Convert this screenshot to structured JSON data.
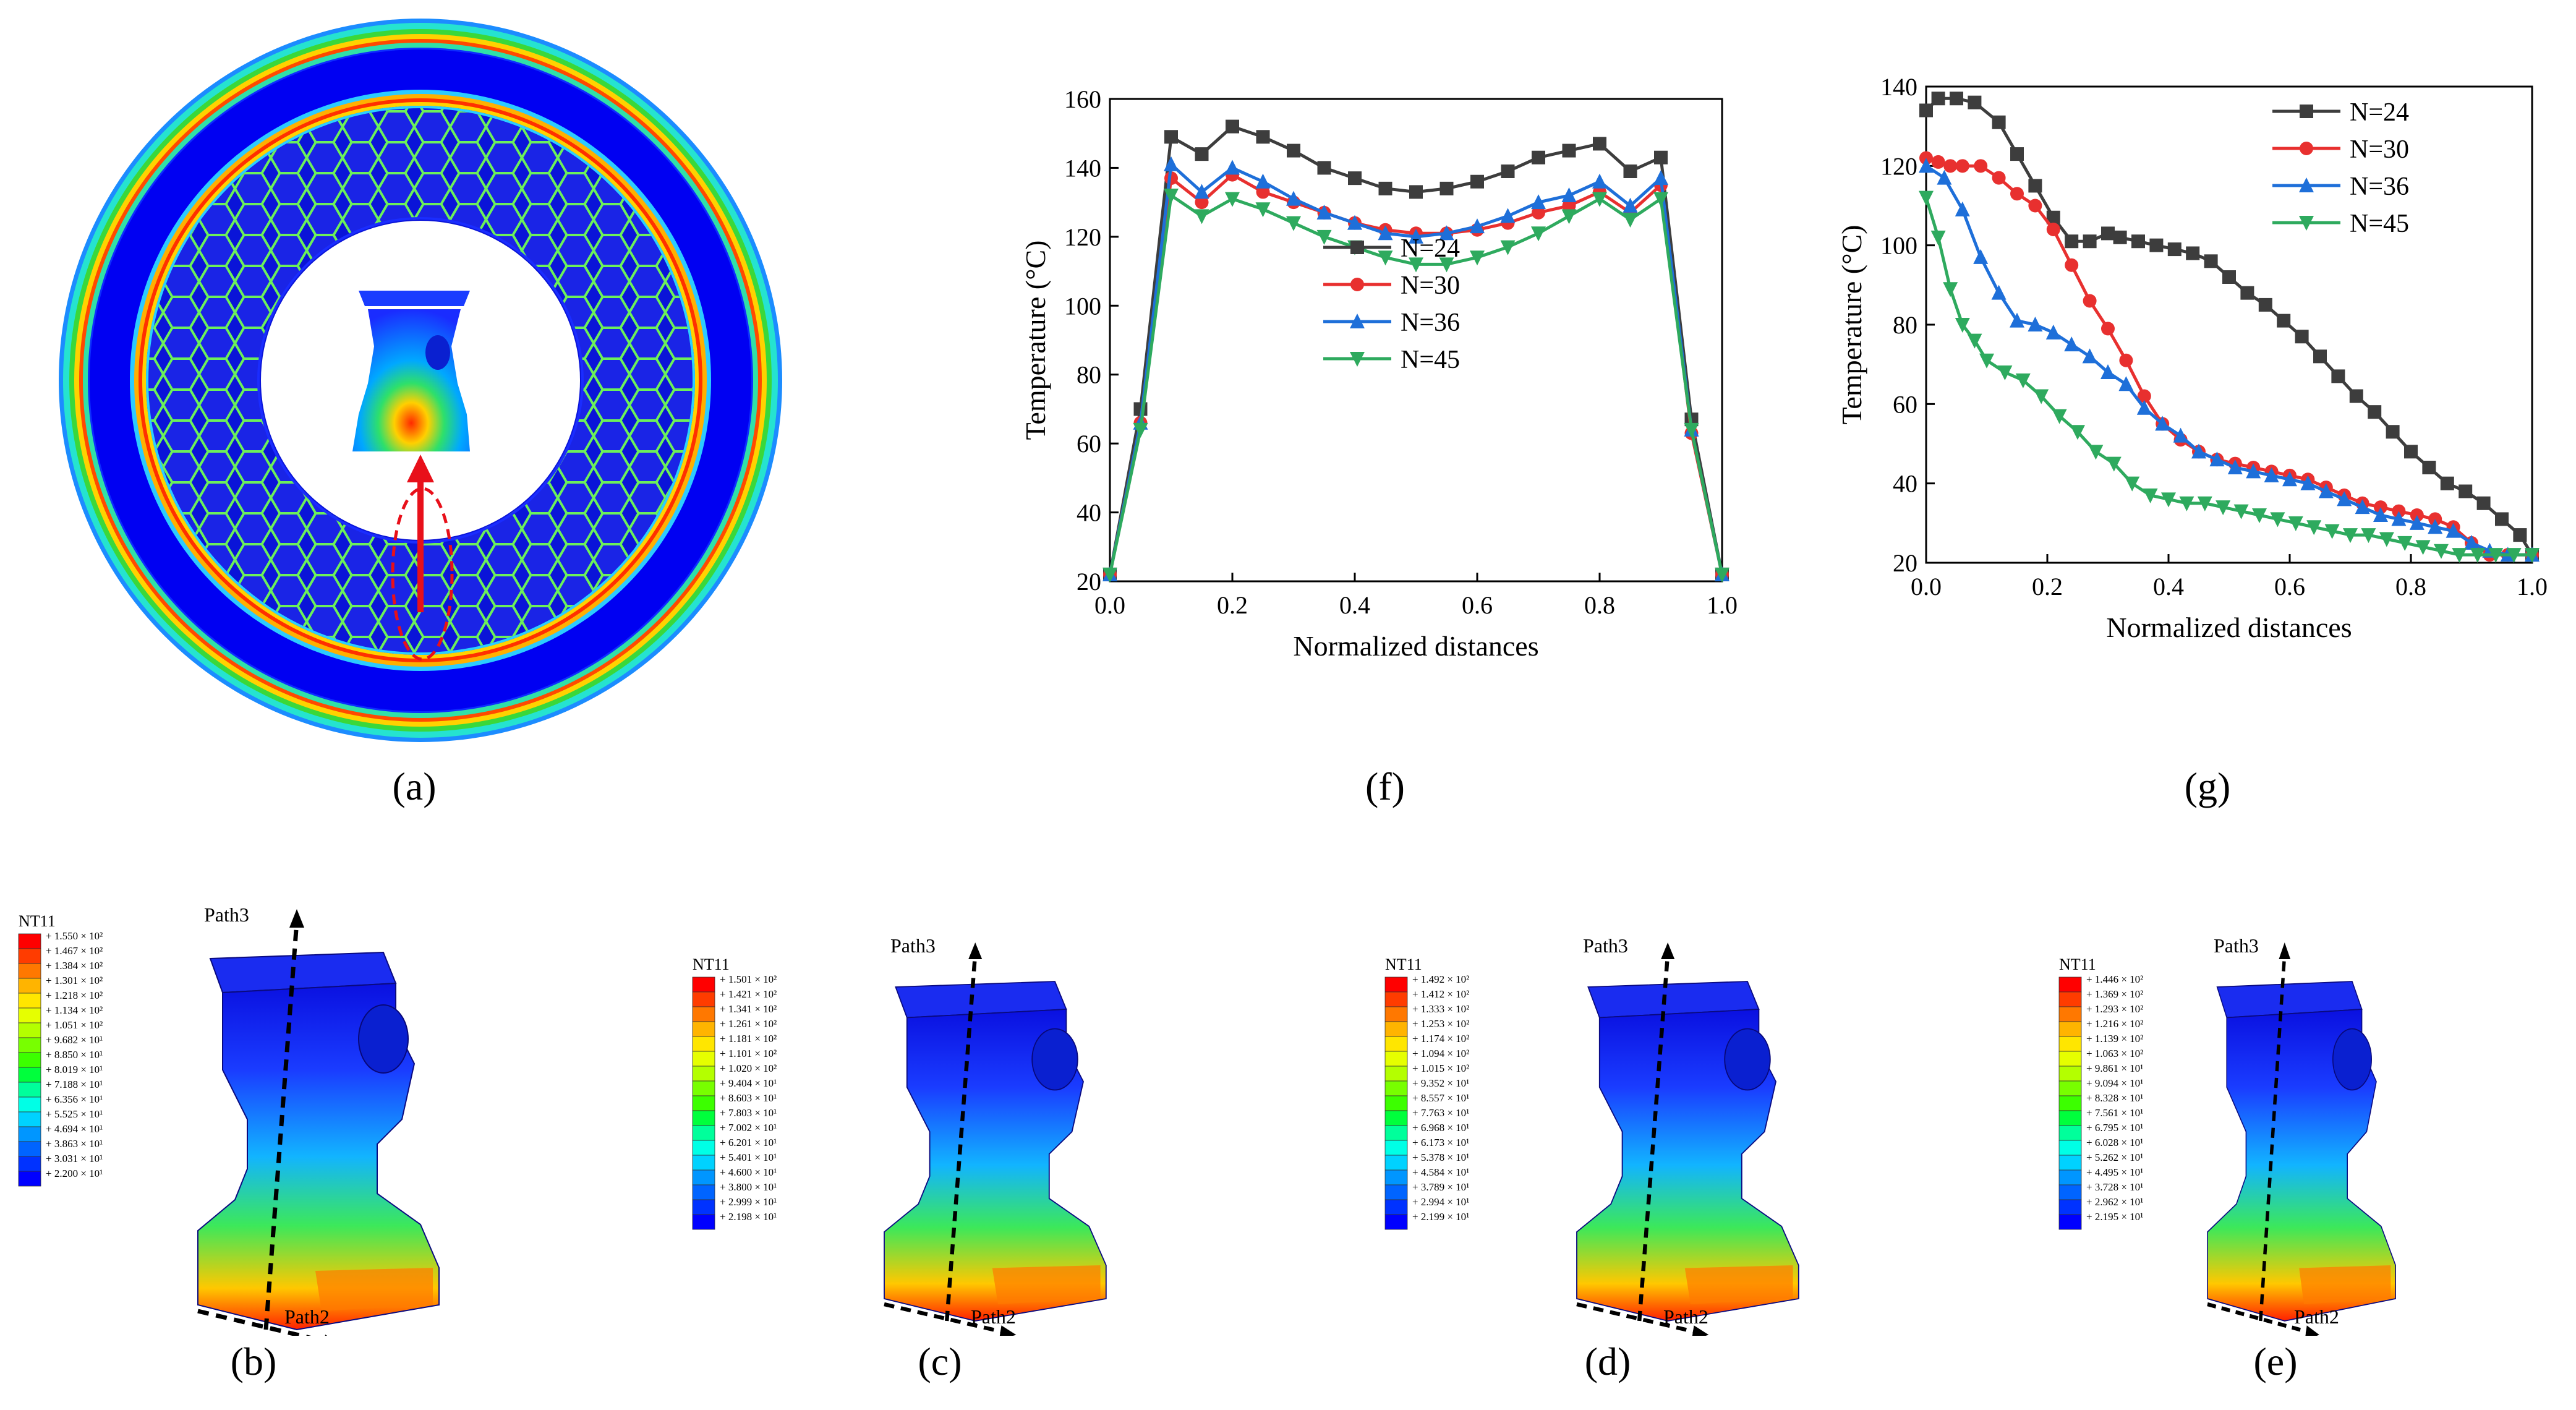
{
  "panels": {
    "a": {
      "label": "(a)"
    },
    "b": {
      "label": "(b)",
      "legend_title": "NT11",
      "path_top": "Path3",
      "path_bottom": "Path2",
      "values": [
        "+ 1.550 × 10²",
        "+ 1.467 × 10²",
        "+ 1.384 × 10²",
        "+ 1.301 × 10²",
        "+ 1.218 × 10²",
        "+ 1.134 × 10²",
        "+ 1.051 × 10²",
        "+ 9.682 × 10¹",
        "+ 8.850 × 10¹",
        "+ 8.019 × 10¹",
        "+ 7.188 × 10¹",
        "+ 6.356 × 10¹",
        "+ 5.525 × 10¹",
        "+ 4.694 × 10¹",
        "+ 3.863 × 10¹",
        "+ 3.031 × 10¹",
        "+ 2.200 × 10¹"
      ]
    },
    "c": {
      "label": "(c)",
      "legend_title": "NT11",
      "path_top": "Path3",
      "path_bottom": "Path2",
      "values": [
        "+ 1.501 × 10²",
        "+ 1.421 × 10²",
        "+ 1.341 × 10²",
        "+ 1.261 × 10²",
        "+ 1.181 × 10²",
        "+ 1.101 × 10²",
        "+ 1.020 × 10²",
        "+ 9.404 × 10¹",
        "+ 8.603 × 10¹",
        "+ 7.803 × 10¹",
        "+ 7.002 × 10¹",
        "+ 6.201 × 10¹",
        "+ 5.401 × 10¹",
        "+ 4.600 × 10¹",
        "+ 3.800 × 10¹",
        "+ 2.999 × 10¹",
        "+ 2.198 × 10¹"
      ]
    },
    "d": {
      "label": "(d)",
      "legend_title": "NT11",
      "path_top": "Path3",
      "path_bottom": "Path2",
      "values": [
        "+ 1.492 × 10²",
        "+ 1.412 × 10²",
        "+ 1.333 × 10²",
        "+ 1.253 × 10²",
        "+ 1.174 × 10²",
        "+ 1.094 × 10²",
        "+ 1.015 × 10²",
        "+ 9.352 × 10¹",
        "+ 8.557 × 10¹",
        "+ 7.763 × 10¹",
        "+ 6.968 × 10¹",
        "+ 6.173 × 10¹",
        "+ 5.378 × 10¹",
        "+ 4.584 × 10¹",
        "+ 3.789 × 10¹",
        "+ 2.994 × 10¹",
        "+ 2.199 × 10¹"
      ]
    },
    "e": {
      "label": "(e)",
      "legend_title": "NT11",
      "path_top": "Path3",
      "path_bottom": "Path2",
      "values": [
        "+ 1.446 × 10²",
        "+ 1.369 × 10²",
        "+ 1.293 × 10²",
        "+ 1.216 × 10²",
        "+ 1.139 × 10²",
        "+ 1.063 × 10²",
        "+ 9.861 × 10¹",
        "+ 9.094 × 10¹",
        "+ 8.328 × 10¹",
        "+ 7.561 × 10¹",
        "+ 6.795 × 10¹",
        "+ 6.028 × 10¹",
        "+ 5.262 × 10¹",
        "+ 4.495 × 10¹",
        "+ 3.728 × 10¹",
        "+ 2.962 × 10¹",
        "+ 2.195 × 10¹"
      ]
    },
    "f": {
      "label": "(f)"
    },
    "g": {
      "label": "(g)"
    }
  },
  "legend_colors": [
    "#ff0000",
    "#ff3c00",
    "#ff7800",
    "#ffb400",
    "#ffe600",
    "#e6ff00",
    "#b4ff00",
    "#78ff00",
    "#3cff00",
    "#00ff3c",
    "#00ff9b",
    "#00ffe6",
    "#00d2ff",
    "#0096ff",
    "#0064ff",
    "#0032ff",
    "#0000ff"
  ],
  "series_colors": {
    "N=24": "#3d3d3d",
    "N=30": "#e8302f",
    "N=36": "#1e6fd9",
    "N=45": "#2eaa5e"
  },
  "chart_data": [
    {
      "id": "f",
      "type": "line",
      "title": "",
      "xlabel": "Normalized distances",
      "ylabel": "Temperature (°C)",
      "xlim": [
        0.0,
        1.0
      ],
      "ylim": [
        20,
        160
      ],
      "xticks": [
        "0.0",
        "0.2",
        "0.4",
        "0.6",
        "0.8",
        "1.0"
      ],
      "yticks": [
        "20",
        "40",
        "60",
        "80",
        "100",
        "120",
        "140",
        "160"
      ],
      "legend_position": "center",
      "x": [
        0.0,
        0.05,
        0.1,
        0.15,
        0.2,
        0.25,
        0.3,
        0.35,
        0.4,
        0.45,
        0.5,
        0.55,
        0.6,
        0.65,
        0.7,
        0.75,
        0.8,
        0.85,
        0.9,
        0.95,
        1.0
      ],
      "series": [
        {
          "name": "N=24",
          "marker": "square",
          "values": [
            22,
            70,
            149,
            144,
            152,
            149,
            145,
            140,
            137,
            134,
            133,
            134,
            136,
            139,
            143,
            145,
            147,
            139,
            143,
            67,
            22
          ]
        },
        {
          "name": "N=30",
          "marker": "circle",
          "values": [
            22,
            66,
            137,
            130,
            138,
            133,
            130,
            127,
            124,
            122,
            121,
            121,
            122,
            124,
            127,
            129,
            133,
            127,
            135,
            63,
            22
          ]
        },
        {
          "name": "N=36",
          "marker": "triangle-up",
          "values": [
            22,
            66,
            141,
            133,
            140,
            136,
            131,
            127,
            124,
            121,
            120,
            121,
            123,
            126,
            130,
            132,
            136,
            129,
            137,
            64,
            22
          ]
        },
        {
          "name": "N=45",
          "marker": "triangle-down",
          "values": [
            22,
            64,
            132,
            126,
            131,
            128,
            124,
            120,
            117,
            114,
            112,
            112,
            114,
            117,
            121,
            126,
            131,
            125,
            131,
            64,
            22
          ]
        }
      ]
    },
    {
      "id": "g",
      "type": "line",
      "title": "",
      "xlabel": "Normalized distances",
      "ylabel": "Temperature (°C)",
      "xlim": [
        0.0,
        1.0
      ],
      "ylim": [
        20,
        140
      ],
      "xticks": [
        "0.0",
        "0.2",
        "0.4",
        "0.6",
        "0.8",
        "1.0"
      ],
      "yticks": [
        "20",
        "40",
        "60",
        "80",
        "100",
        "120",
        "140"
      ],
      "legend_position": "top-right",
      "series": [
        {
          "name": "N=24",
          "marker": "square",
          "x": [
            0.0,
            0.02,
            0.05,
            0.08,
            0.12,
            0.15,
            0.18,
            0.21,
            0.24,
            0.27,
            0.3,
            0.32,
            0.35,
            0.38,
            0.41,
            0.44,
            0.47,
            0.5,
            0.53,
            0.56,
            0.59,
            0.62,
            0.65,
            0.68,
            0.71,
            0.74,
            0.77,
            0.8,
            0.83,
            0.86,
            0.89,
            0.92,
            0.95,
            0.98,
            1.0
          ],
          "values": [
            134,
            137,
            137,
            136,
            131,
            123,
            115,
            107,
            101,
            101,
            103,
            102,
            101,
            100,
            99,
            98,
            96,
            92,
            88,
            85,
            81,
            77,
            72,
            67,
            62,
            58,
            53,
            48,
            44,
            40,
            38,
            35,
            31,
            27,
            22
          ]
        },
        {
          "name": "N=30",
          "marker": "circle",
          "x": [
            0.0,
            0.02,
            0.04,
            0.06,
            0.09,
            0.12,
            0.15,
            0.18,
            0.21,
            0.24,
            0.27,
            0.3,
            0.33,
            0.36,
            0.39,
            0.42,
            0.45,
            0.48,
            0.51,
            0.54,
            0.57,
            0.6,
            0.63,
            0.66,
            0.69,
            0.72,
            0.75,
            0.78,
            0.81,
            0.84,
            0.87,
            0.9,
            0.93,
            0.96,
            1.0
          ],
          "values": [
            122,
            121,
            120,
            120,
            120,
            117,
            113,
            110,
            104,
            95,
            86,
            79,
            71,
            62,
            55,
            51,
            48,
            46,
            45,
            44,
            43,
            42,
            41,
            39,
            37,
            35,
            34,
            33,
            32,
            31,
            29,
            25,
            22,
            22,
            22
          ]
        },
        {
          "name": "N=36",
          "marker": "triangle-up",
          "x": [
            0.0,
            0.03,
            0.06,
            0.09,
            0.12,
            0.15,
            0.18,
            0.21,
            0.24,
            0.27,
            0.3,
            0.33,
            0.36,
            0.39,
            0.42,
            0.45,
            0.48,
            0.51,
            0.54,
            0.57,
            0.6,
            0.63,
            0.66,
            0.69,
            0.72,
            0.75,
            0.78,
            0.81,
            0.84,
            0.87,
            0.9,
            0.93,
            0.96,
            1.0
          ],
          "values": [
            120,
            117,
            109,
            97,
            88,
            81,
            80,
            78,
            75,
            72,
            68,
            65,
            59,
            55,
            52,
            48,
            46,
            44,
            43,
            42,
            41,
            40,
            38,
            36,
            34,
            32,
            31,
            30,
            29,
            28,
            25,
            23,
            22,
            22
          ]
        },
        {
          "name": "N=45",
          "marker": "triangle-down",
          "x": [
            0.0,
            0.02,
            0.04,
            0.06,
            0.08,
            0.1,
            0.13,
            0.16,
            0.19,
            0.22,
            0.25,
            0.28,
            0.31,
            0.34,
            0.37,
            0.4,
            0.43,
            0.46,
            0.49,
            0.52,
            0.55,
            0.58,
            0.61,
            0.64,
            0.67,
            0.7,
            0.73,
            0.76,
            0.79,
            0.82,
            0.85,
            0.88,
            0.91,
            0.94,
            0.97,
            1.0
          ],
          "values": [
            112,
            102,
            89,
            80,
            76,
            71,
            68,
            66,
            62,
            57,
            53,
            48,
            45,
            40,
            37,
            36,
            35,
            35,
            34,
            33,
            32,
            31,
            30,
            29,
            28,
            27,
            27,
            26,
            25,
            24,
            23,
            22,
            22,
            22,
            22,
            22
          ]
        }
      ]
    }
  ]
}
